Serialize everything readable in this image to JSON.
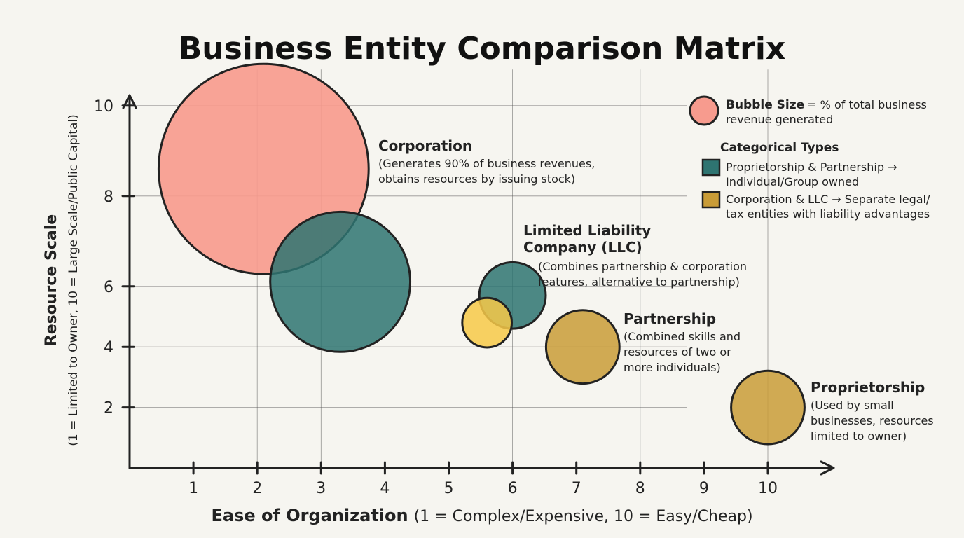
{
  "chart_data": {
    "type": "scatter",
    "title": "Business Entity Comparison Matrix",
    "xlabel": "Ease of Organization",
    "xlabel_detail": "(1 = Complex/Expensive, 10 = Easy/Cheap)",
    "ylabel": "Resource Scale",
    "ylabel_detail": "(1 = Limited to Owner, 10 = Large Scale/Public Capital)",
    "xlim": [
      0,
      10.5
    ],
    "ylim": [
      0,
      10.8
    ],
    "x_ticks": [
      1,
      2,
      3,
      4,
      5,
      6,
      7,
      8,
      9,
      10
    ],
    "y_ticks": [
      2,
      4,
      6,
      8,
      10
    ],
    "grid": true,
    "legend_position": "top-right",
    "colors": {
      "corporation": "#f79b8e",
      "teal": "#2e7471",
      "gold": "#c99c37",
      "yellow": "#f7c948"
    },
    "points": [
      {
        "x": 2.1,
        "y": 8.6,
        "size": 90,
        "color": "#f79b8e"
      },
      {
        "x": 3.3,
        "y": 6.1,
        "size": 40,
        "color": "#2e7471"
      },
      {
        "x": 6.0,
        "y": 5.7,
        "size": 9,
        "color": "#2e7471"
      },
      {
        "x": 5.6,
        "y": 4.8,
        "size": 5,
        "color": "#f7c948"
      },
      {
        "x": 7.1,
        "y": 4.0,
        "size": 11,
        "color": "#c99c37"
      },
      {
        "x": 10.0,
        "y": 2.0,
        "size": 11,
        "color": "#c99c37"
      }
    ],
    "annotations": [
      {
        "title": "Corporation",
        "lines": [
          "(Generates 90% of business revenues,",
          "obtains resources by issuing stock)"
        ]
      },
      {
        "title_lines": [
          "Limited Liability",
          "Company (LLC)"
        ],
        "lines": [
          "(Combines partnership & corporation",
          "features, alternative to partnership)"
        ]
      },
      {
        "title": "Partnership",
        "lines": [
          "(Combined skills and",
          "resources of two or",
          "more individuals)"
        ]
      },
      {
        "title": "Proprietorship",
        "lines": [
          "(Used by small",
          "businesses, resources",
          "limited to owner)"
        ]
      }
    ],
    "legend": {
      "size_title": "Bubble Size",
      "size_text_lines": [
        "= % of total business",
        "revenue generated"
      ],
      "categorical_title": "Categorical Types",
      "items": [
        {
          "color": "#2e7471",
          "lines": [
            "Proprietorship & Partnership →",
            "Individual/Group owned"
          ]
        },
        {
          "color": "#c99c37",
          "lines": [
            "Corporation & LLC → Separate legal/",
            "tax entities with liability advantages"
          ]
        }
      ]
    }
  }
}
